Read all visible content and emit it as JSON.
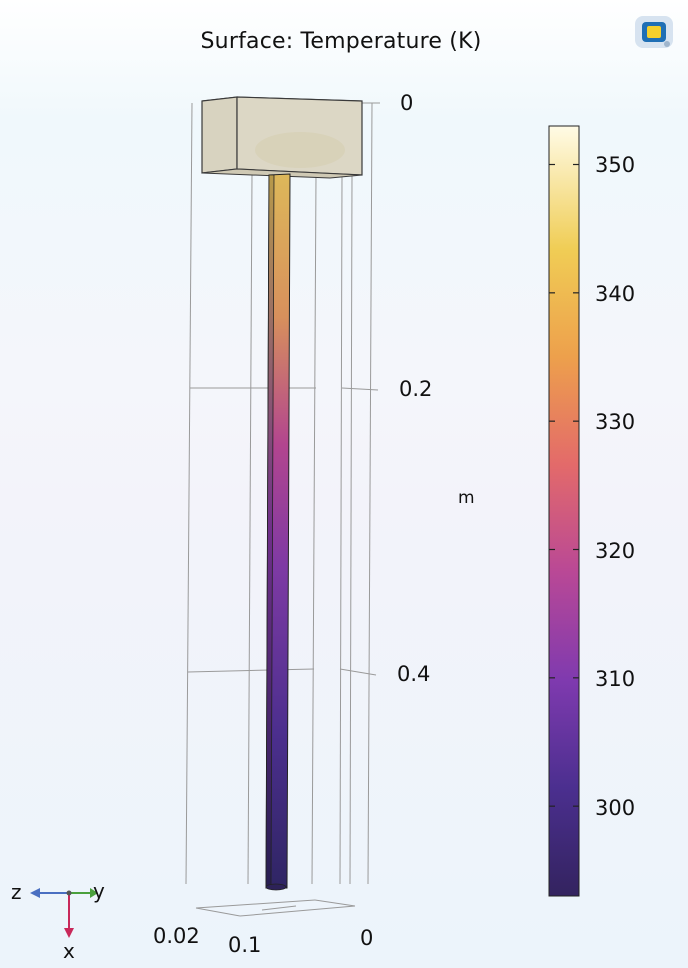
{
  "plot": {
    "title": "Surface: Temperature (K)",
    "unit": "m",
    "vertical_axis_ticks": [
      "0",
      "0.2",
      "0.4"
    ],
    "bottom_axis_ticks": [
      "0.02",
      "0.1",
      "0"
    ]
  },
  "colorbar": {
    "ticks": [
      "350",
      "340",
      "330",
      "320",
      "310",
      "300"
    ],
    "min_value": 293,
    "max_value": 353,
    "colors": [
      "#fffbe6",
      "#f3d66e",
      "#eaa340",
      "#e36a55",
      "#c2478f",
      "#8a3ca9",
      "#4b2f8f",
      "#33235f"
    ]
  },
  "triad": {
    "z": "z",
    "y": "y",
    "x": "x",
    "colors": {
      "z": "#4a6fc1",
      "y": "#4aa03c",
      "x": "#c8285a"
    }
  },
  "icons": {
    "logo": "comsol-logo-icon"
  }
}
